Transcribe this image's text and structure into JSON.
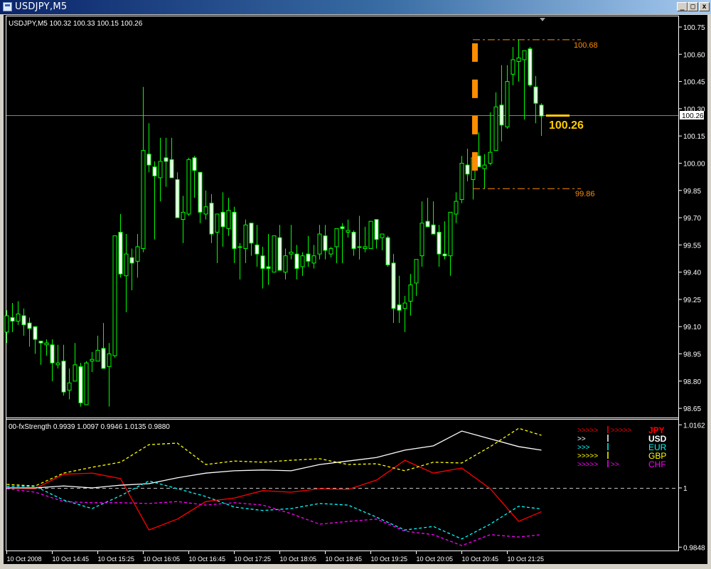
{
  "window": {
    "title": "USDJPY,M5",
    "buttons": {
      "minimize": "_",
      "maximize": "□",
      "close": "x"
    }
  },
  "chart": {
    "header": "USDJPY,M5  100.32 100.33 100.15 100.26",
    "bid_label": "100.26",
    "big_price_label": "100.26",
    "range_high_label": "100.68",
    "range_low_label": "99.86",
    "colors": {
      "background": "#000000",
      "candle": "#00ff00",
      "bear_fill": "#ffffff",
      "bull_fill": "#000000",
      "bid_line": "#808080",
      "range": "#ff8c00",
      "big_price": "#ffcc00"
    },
    "price_ticks": [
      "100.75",
      "100.60",
      "100.45",
      "100.30",
      "100.15",
      "100.00",
      "99.85",
      "99.70",
      "99.55",
      "99.40",
      "99.25",
      "99.10",
      "98.95",
      "98.80",
      "98.65"
    ],
    "time_labels": [
      "10 Oct 2008",
      "10 Oct 14:45",
      "10 Oct 15:25",
      "10 Oct 16:05",
      "10 Oct 16:45",
      "10 Oct 17:25",
      "10 Oct 18:05",
      "10 Oct 18:45",
      "10 Oct 19:25",
      "10 Oct 20:05",
      "10 Oct 20:45",
      "10 Oct 21:25"
    ]
  },
  "chart_data": [
    {
      "type": "candlestick",
      "symbol": "USDJPY",
      "timeframe": "M5",
      "ylim": [
        98.62,
        100.8
      ],
      "bid": 100.26,
      "range_high": 100.68,
      "range_low": 99.86,
      "ohlc": [
        [
          99.07,
          99.19,
          99.01,
          99.16
        ],
        [
          99.15,
          99.23,
          99.07,
          99.13
        ],
        [
          99.13,
          99.24,
          99.11,
          99.17
        ],
        [
          99.16,
          99.2,
          99.05,
          99.11
        ],
        [
          99.12,
          99.15,
          98.99,
          99.09
        ],
        [
          99.1,
          99.1,
          98.95,
          99.03
        ],
        [
          99.02,
          99.02,
          98.89,
          99.01
        ],
        [
          99.0,
          99.03,
          98.94,
          99.01
        ],
        [
          99.0,
          99.03,
          98.8,
          98.9
        ],
        [
          98.89,
          99.0,
          98.87,
          98.9
        ],
        [
          98.91,
          99.0,
          98.72,
          98.74
        ],
        [
          98.75,
          98.87,
          98.7,
          98.79
        ],
        [
          98.8,
          99.01,
          98.8,
          98.89
        ],
        [
          98.88,
          98.9,
          98.66,
          98.68
        ],
        [
          98.67,
          98.91,
          98.67,
          98.9
        ],
        [
          98.91,
          98.96,
          98.85,
          98.92
        ],
        [
          98.91,
          99.05,
          98.91,
          98.97
        ],
        [
          98.98,
          99.12,
          98.87,
          98.87
        ],
        [
          98.88,
          99.01,
          98.66,
          98.95
        ],
        [
          98.94,
          99.6,
          98.93,
          99.6
        ],
        [
          99.62,
          99.72,
          99.37,
          99.39
        ],
        [
          99.38,
          99.61,
          99.18,
          99.5
        ],
        [
          99.48,
          99.53,
          99.3,
          99.45
        ],
        [
          99.46,
          99.61,
          99.37,
          99.54
        ],
        [
          99.53,
          100.42,
          99.51,
          100.07
        ],
        [
          100.05,
          100.22,
          99.95,
          99.99
        ],
        [
          99.98,
          100.01,
          99.58,
          99.93
        ],
        [
          99.92,
          100.14,
          99.79,
          100.01
        ],
        [
          100.03,
          100.14,
          99.87,
          100.01
        ],
        [
          100.02,
          100.14,
          99.92,
          99.92
        ],
        [
          99.91,
          99.95,
          99.7,
          99.7
        ],
        [
          99.69,
          99.82,
          99.56,
          99.73
        ],
        [
          99.72,
          100.03,
          99.71,
          100.02
        ],
        [
          100.03,
          100.04,
          99.81,
          99.96
        ],
        [
          99.95,
          99.95,
          99.67,
          99.73
        ],
        [
          99.72,
          99.85,
          99.69,
          99.76
        ],
        [
          99.78,
          99.83,
          99.56,
          99.61
        ],
        [
          99.62,
          99.72,
          99.45,
          99.72
        ],
        [
          99.73,
          99.84,
          99.54,
          99.65
        ],
        [
          99.64,
          99.81,
          99.6,
          99.74
        ],
        [
          99.73,
          99.76,
          99.45,
          99.53
        ],
        [
          99.54,
          99.56,
          99.36,
          99.54
        ],
        [
          99.53,
          99.69,
          99.45,
          99.66
        ],
        [
          99.67,
          99.67,
          99.49,
          99.56
        ],
        [
          99.55,
          99.66,
          99.43,
          99.5
        ],
        [
          99.49,
          99.54,
          99.31,
          99.42
        ],
        [
          99.43,
          99.61,
          99.33,
          99.42
        ],
        [
          99.4,
          99.6,
          99.4,
          99.6
        ],
        [
          99.59,
          99.66,
          99.41,
          99.41
        ],
        [
          99.4,
          99.53,
          99.36,
          99.49
        ],
        [
          99.5,
          99.66,
          99.47,
          99.51
        ],
        [
          99.5,
          99.55,
          99.36,
          99.42
        ],
        [
          99.43,
          99.51,
          99.38,
          99.49
        ],
        [
          99.5,
          99.6,
          99.43,
          99.46
        ],
        [
          99.45,
          99.55,
          99.42,
          99.49
        ],
        [
          99.5,
          99.66,
          99.47,
          99.61
        ],
        [
          99.6,
          99.66,
          99.47,
          99.52
        ],
        [
          99.5,
          99.54,
          99.48,
          99.53
        ],
        [
          99.54,
          99.64,
          99.45,
          99.64
        ],
        [
          99.65,
          99.67,
          99.45,
          99.64
        ],
        [
          99.62,
          99.69,
          99.59,
          99.63
        ],
        [
          99.62,
          99.63,
          99.49,
          99.53
        ],
        [
          99.54,
          99.71,
          99.47,
          99.54
        ],
        [
          99.53,
          99.65,
          99.51,
          99.54
        ],
        [
          99.53,
          99.68,
          99.53,
          99.68
        ],
        [
          99.69,
          99.69,
          99.53,
          99.58
        ],
        [
          99.59,
          99.61,
          99.52,
          99.61
        ],
        [
          99.59,
          99.6,
          99.43,
          99.44
        ],
        [
          99.45,
          99.5,
          99.12,
          99.2
        ],
        [
          99.22,
          99.38,
          99.12,
          99.19
        ],
        [
          99.2,
          99.27,
          99.07,
          99.23
        ],
        [
          99.24,
          99.39,
          99.16,
          99.33
        ],
        [
          99.34,
          99.47,
          99.27,
          99.47
        ],
        [
          99.49,
          99.79,
          99.43,
          99.67
        ],
        [
          99.68,
          99.81,
          99.65,
          99.65
        ],
        [
          99.66,
          99.79,
          99.61,
          99.61
        ],
        [
          99.62,
          99.66,
          99.43,
          99.5
        ],
        [
          99.5,
          99.68,
          99.47,
          99.49
        ],
        [
          99.49,
          99.73,
          99.38,
          99.73
        ],
        [
          99.72,
          99.84,
          99.67,
          99.79
        ],
        [
          99.8,
          100.04,
          99.78,
          100.0
        ],
        [
          99.99,
          100.08,
          99.9,
          99.94
        ],
        [
          99.91,
          100.03,
          99.8,
          100.03
        ],
        [
          100.04,
          100.17,
          99.98,
          99.98
        ],
        [
          99.97,
          100.05,
          99.86,
          99.99
        ],
        [
          100.0,
          100.28,
          99.99,
          100.06
        ],
        [
          100.07,
          100.39,
          100.07,
          100.31
        ],
        [
          100.32,
          100.54,
          100.12,
          100.21
        ],
        [
          100.2,
          100.54,
          100.19,
          100.45
        ],
        [
          100.49,
          100.64,
          100.43,
          100.57
        ],
        [
          100.56,
          100.68,
          100.45,
          100.58
        ],
        [
          100.57,
          100.62,
          100.24,
          100.62
        ],
        [
          100.63,
          100.64,
          100.42,
          100.43
        ],
        [
          100.42,
          100.48,
          100.22,
          100.33
        ],
        [
          100.32,
          100.33,
          100.15,
          100.26
        ]
      ]
    },
    {
      "type": "line",
      "title": "00-fxStrength",
      "header": "00-fxStrength 0.9939 1.0097 0.9946 1.0135 0.9880",
      "ylim": [
        0.9848,
        1.0162
      ],
      "y_ticks": [
        "1.0162",
        "1",
        "0.9848"
      ],
      "reference_level": 1,
      "x_bar_index": [
        0,
        5,
        10,
        15,
        20,
        25,
        30,
        35,
        40,
        45,
        50,
        55,
        60,
        65,
        70,
        75,
        80,
        85,
        90,
        94
      ],
      "series": [
        {
          "name": "JPY",
          "color": "#ff0000",
          "style": "solid",
          "values": [
            1.0,
            0.9998,
            1.0035,
            1.0038,
            1.0024,
            0.9892,
            0.992,
            0.9965,
            0.9974,
            0.9993,
            0.9989,
            0.9998,
            0.9996,
            1.002,
            1.0071,
            1.0038,
            1.0051,
            0.9998,
            0.9914,
            0.9939
          ]
        },
        {
          "name": "USD",
          "color": "#ffffff",
          "style": "solid",
          "values": [
            1.0,
            1.0,
            1.0005,
            1.0,
            1.0007,
            1.0011,
            1.0026,
            1.0038,
            1.0044,
            1.0046,
            1.0044,
            1.006,
            1.0069,
            1.0078,
            1.0097,
            1.0108,
            1.0146,
            1.0126,
            1.0106,
            1.0097
          ]
        },
        {
          "name": "EUR",
          "color": "#00ffff",
          "style": "dashed",
          "values": [
            1.0004,
            1.0004,
            0.9969,
            0.9947,
            0.998,
            1.0018,
            0.9998,
            0.9978,
            0.9951,
            0.9942,
            0.9947,
            0.996,
            0.9956,
            0.9925,
            0.9892,
            0.9901,
            0.9869,
            0.9907,
            0.9953,
            0.9946
          ]
        },
        {
          "name": "GBP",
          "color": "#ffff00",
          "style": "dashed",
          "values": [
            1.0009,
            1.0005,
            1.0038,
            1.0053,
            1.0066,
            1.0111,
            1.0115,
            1.006,
            1.0069,
            1.0066,
            1.0071,
            1.0075,
            1.006,
            1.0062,
            1.0044,
            1.0066,
            1.0064,
            1.0106,
            1.0153,
            1.0135
          ]
        },
        {
          "name": "CHF",
          "color": "#ff00ff",
          "style": "dashed",
          "values": [
            0.9998,
            0.9989,
            0.9965,
            0.9962,
            0.9962,
            0.996,
            0.9965,
            0.9956,
            0.9962,
            0.9956,
            0.9934,
            0.9907,
            0.9914,
            0.992,
            0.9889,
            0.988,
            0.9852,
            0.988,
            0.9874,
            0.988
          ]
        }
      ],
      "legend": [
        {
          "label": "JPY",
          "color": "#ff0000",
          "bold": true,
          "left": ">>>>>",
          "right": ">>>>>"
        },
        {
          "label": "USD",
          "color": "#ffffff",
          "bold": true,
          "left": ">>",
          "right": ""
        },
        {
          "label": "EUR",
          "color": "#00ffff",
          "bold": false,
          "left": ">>>",
          "right": ""
        },
        {
          "label": "GBP",
          "color": "#ffff00",
          "bold": false,
          "left": ">>>>>",
          "right": ""
        },
        {
          "label": "CHF",
          "color": "#ff00ff",
          "bold": false,
          "left": ">>>>>",
          "right": ">>"
        }
      ],
      "legend_placement": "top-right"
    }
  ]
}
